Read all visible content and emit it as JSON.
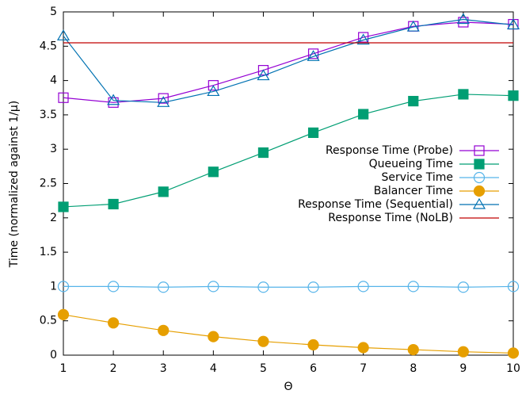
{
  "chart_data": {
    "type": "line",
    "x_label": "Θ",
    "y_label": "Time (normalized against 1/μ)",
    "x": [
      1,
      2,
      3,
      4,
      5,
      6,
      7,
      8,
      9,
      10
    ],
    "xlim": [
      1,
      10
    ],
    "xticks": [
      1,
      2,
      3,
      4,
      5,
      6,
      7,
      8,
      9,
      10
    ],
    "ylim": [
      0,
      5
    ],
    "yticks": [
      0,
      0.5,
      1,
      1.5,
      2,
      2.5,
      3,
      3.5,
      4,
      4.5,
      5
    ],
    "grid": false,
    "legend": "right",
    "series": [
      {
        "name": "Response Time (Probe)",
        "color": "#9400d3",
        "marker": "square-open",
        "values": [
          3.75,
          3.68,
          3.74,
          3.93,
          4.15,
          4.39,
          4.63,
          4.79,
          4.85,
          4.82
        ]
      },
      {
        "name": "Queueing Time",
        "color": "#009e73",
        "marker": "square-filled",
        "values": [
          2.16,
          2.2,
          2.38,
          2.67,
          2.95,
          3.24,
          3.51,
          3.7,
          3.8,
          3.78
        ]
      },
      {
        "name": "Service Time",
        "color": "#56b4e9",
        "marker": "circle-open",
        "values": [
          1.0,
          1.0,
          0.99,
          1.0,
          0.99,
          0.99,
          1.0,
          1.0,
          0.99,
          1.0
        ]
      },
      {
        "name": "Balancer Time",
        "color": "#e69f00",
        "marker": "circle-filled",
        "values": [
          0.59,
          0.47,
          0.36,
          0.27,
          0.2,
          0.15,
          0.11,
          0.08,
          0.05,
          0.03
        ]
      },
      {
        "name": "Response Time (Sequential)",
        "color": "#0072b2",
        "marker": "triangle-open",
        "values": [
          4.65,
          3.71,
          3.68,
          3.84,
          4.07,
          4.35,
          4.59,
          4.78,
          4.89,
          4.81
        ]
      },
      {
        "name": "Response Time (NoLB)",
        "color": "#c00000",
        "marker": "none",
        "values": [
          4.55,
          4.55,
          4.55,
          4.55,
          4.55,
          4.55,
          4.55,
          4.55,
          4.55,
          4.55
        ]
      }
    ]
  }
}
